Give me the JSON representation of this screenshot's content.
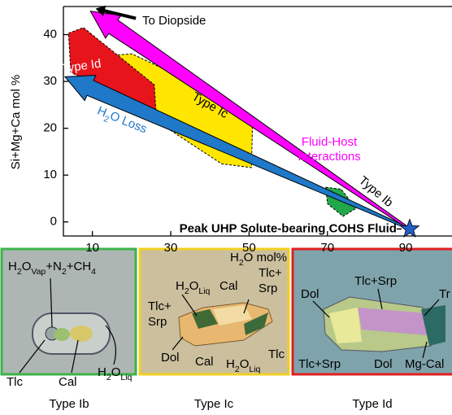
{
  "chart_data": {
    "type": "region",
    "y_label": "Si+Mg+Ca mol %",
    "x_label": [
      "H",
      {
        "sub": "2"
      },
      "O mol%"
    ],
    "xlim": [
      2.6,
      101.8
    ],
    "ylim": [
      -3,
      46
    ],
    "xticks": [
      10,
      30,
      50,
      70,
      90
    ],
    "yticks": [
      0,
      10,
      20,
      30,
      40
    ],
    "regions": [
      {
        "name": "Type Ic",
        "color": "#ffe600",
        "x": [
          14.4,
          20.1,
          43.9,
          50.9,
          50.6,
          43,
          14.4
        ],
        "y": [
          35.5,
          35.9,
          26.4,
          21.5,
          11.6,
          12.4,
          28.1
        ]
      },
      {
        "name": "Type Id",
        "color": "#e8141c",
        "x": [
          3.9,
          7.7,
          25.8,
          26.2,
          15.4,
          4.5
        ],
        "y": [
          40.3,
          41.5,
          29.3,
          24,
          27.8,
          31.9
        ]
      },
      {
        "name": "Type Ib",
        "color": "#22a84a",
        "x": [
          69.6,
          73.5,
          77.3,
          74,
          70
        ],
        "y": [
          7.4,
          7,
          2.9,
          1.2,
          3.9
        ]
      }
    ],
    "arrows": [
      {
        "color": "#1f78c8",
        "x": [
          91,
          3
        ],
        "y": [
          -1.5,
          31
        ]
      },
      {
        "color": "#ff00ff",
        "x": [
          91,
          9.5
        ],
        "y": [
          -1.5,
          45
        ]
      },
      {
        "color": "#000000",
        "x": [
          21,
          11
        ],
        "y": [
          43.5,
          45.5
        ]
      }
    ],
    "annotations": [
      "To Diopside",
      [
        "H",
        {
          "sub": "2"
        },
        "O Loss"
      ],
      "Fluid-Host",
      "Interactions"
    ],
    "point": {
      "name": "Peak UHP Solute-bearing COHS Fluid",
      "x": 91,
      "y": -1.5,
      "color": "#1f5fc8"
    }
  },
  "figure_panels": [
    {
      "caption": "Type Ib",
      "labels": [
        [
          "H",
          {
            "sub": "2"
          },
          "O",
          {
            "sub": "Vap"
          },
          "+N",
          {
            "sub": "2"
          },
          "+CH",
          {
            "sub": "4"
          }
        ],
        "Tlc",
        "Cal",
        [
          "H",
          {
            "sub": "2"
          },
          "O",
          {
            "sub": "Liq"
          }
        ]
      ]
    },
    {
      "caption": "Type Ic",
      "labels": [
        [
          "H",
          {
            "sub": "2"
          },
          "O",
          {
            "sub": "Liq"
          }
        ],
        "Cal",
        "Tlc+",
        "Srp",
        "Tlc+",
        "Srp",
        "Dol",
        "Cal",
        [
          "H",
          {
            "sub": "2"
          },
          "O",
          {
            "sub": "Liq"
          }
        ],
        "Tlc"
      ]
    },
    {
      "caption": "Type Id",
      "labels": [
        "Dol",
        "Tlc+Srp",
        "Tr",
        "Tlc+Srp",
        "Dol",
        "Mg-Cal"
      ]
    }
  ]
}
